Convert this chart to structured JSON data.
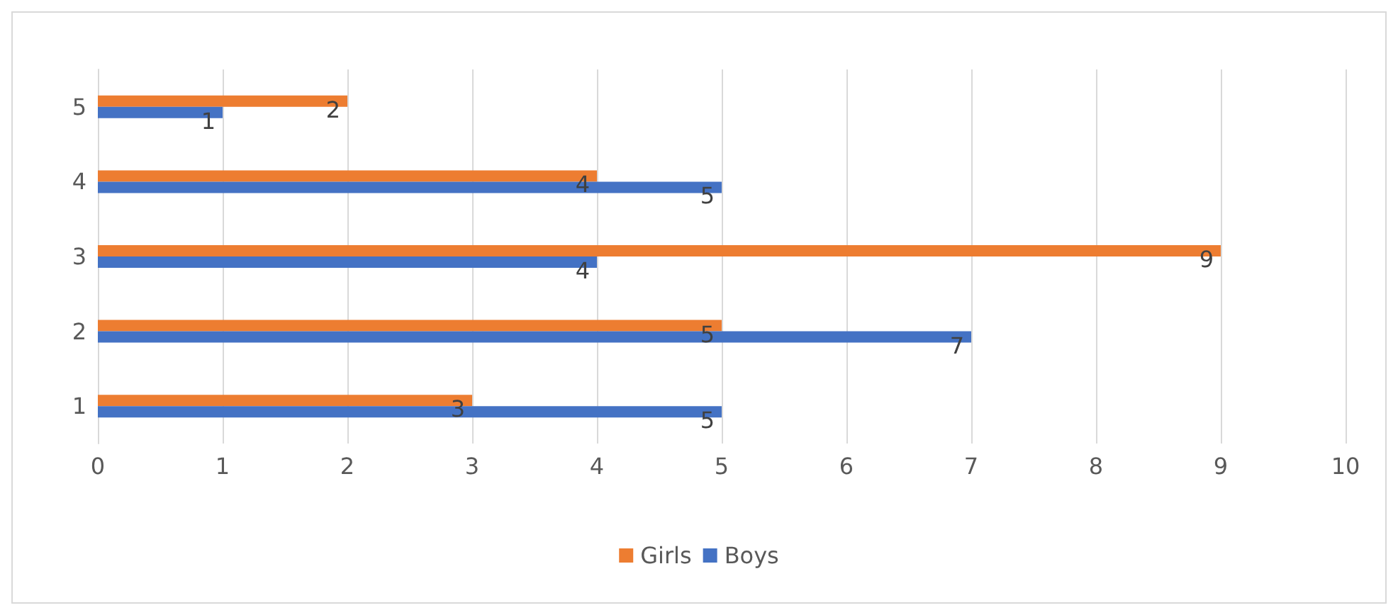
{
  "chart_data": {
    "type": "bar",
    "orientation": "horizontal",
    "categories": [
      "5",
      "4",
      "3",
      "2",
      "1"
    ],
    "series": [
      {
        "name": "Girls",
        "color": "#ed7d31",
        "values": [
          2,
          4,
          9,
          5,
          3
        ]
      },
      {
        "name": "Boys",
        "color": "#4472c4",
        "values": [
          1,
          5,
          4,
          7,
          5
        ]
      }
    ],
    "xlim": [
      0,
      10
    ],
    "xticks": [
      0,
      1,
      2,
      3,
      4,
      5,
      6,
      7,
      8,
      9,
      10
    ],
    "grid": "x",
    "legend": "bottom",
    "data_labels": true
  }
}
